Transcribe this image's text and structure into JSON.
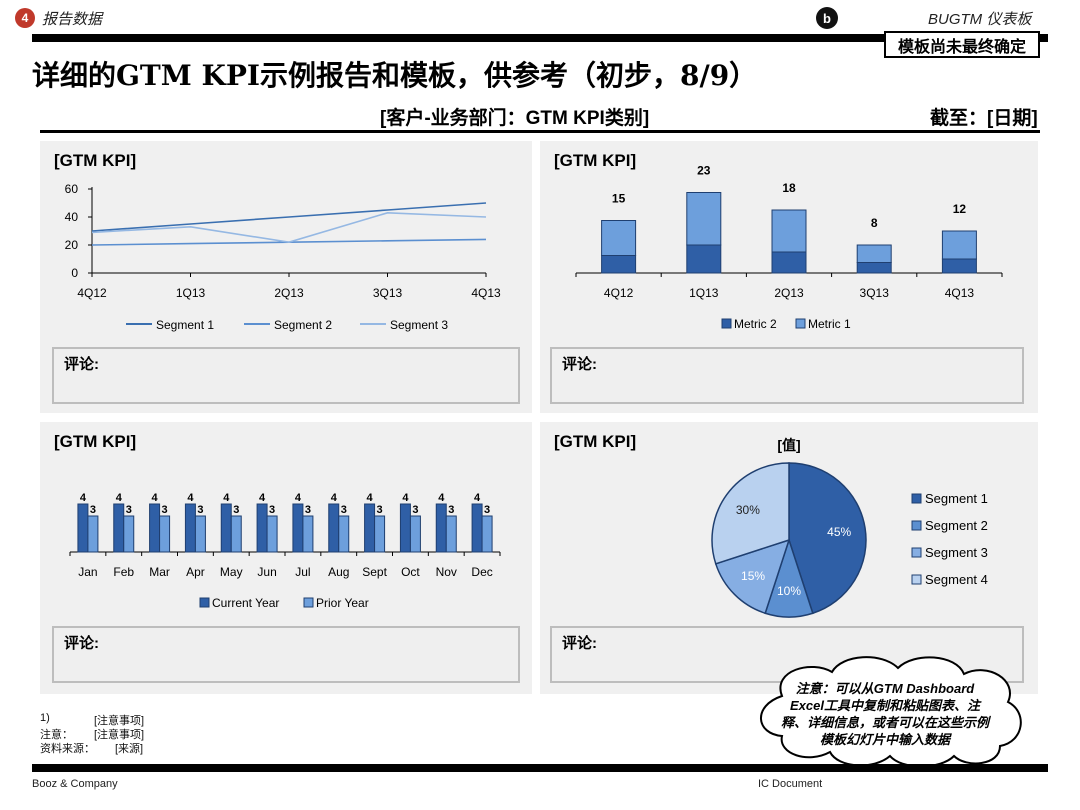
{
  "header": {
    "section_number": "4",
    "section_title": "报告数据",
    "badge": "b",
    "brand": "BUGTM 仪表板",
    "draft_notice": "模板尚未最终确定",
    "title": "详细的GTM KPI示例报告和模板，供参考（初步，8/9）",
    "subtitle": "[客户-业务部门：GTM KPI类别]",
    "as_of": "截至：[日期]"
  },
  "panels": {
    "top_left": {
      "label": "[GTM KPI]",
      "comment": "评论:"
    },
    "top_right": {
      "label": "[GTM KPI]",
      "comment": "评论:"
    },
    "bottom_left": {
      "label": "[GTM KPI]",
      "comment": "评论:"
    },
    "bottom_right": {
      "label": "[GTM KPI]",
      "comment": "评论:"
    }
  },
  "chart_data": [
    {
      "type": "line",
      "categories": [
        "4Q12",
        "1Q13",
        "2Q13",
        "3Q13",
        "4Q13"
      ],
      "ylim": [
        0,
        60
      ],
      "yticks": [
        0,
        20,
        40,
        60
      ],
      "series": [
        {
          "name": "Segment 1",
          "values": [
            30,
            35,
            40,
            45,
            50
          ],
          "color": "#3a6fb0"
        },
        {
          "name": "Segment 2",
          "values": [
            20,
            21,
            22,
            23,
            24
          ],
          "color": "#5b8fd0"
        },
        {
          "name": "Segment 3",
          "values": [
            29,
            33,
            22,
            43,
            40
          ],
          "color": "#95b8e3"
        }
      ],
      "legend_position": "bottom"
    },
    {
      "type": "bar",
      "stacked": true,
      "categories": [
        "4Q12",
        "1Q13",
        "2Q13",
        "3Q13",
        "4Q13"
      ],
      "totals": [
        "15",
        "23",
        "18",
        "8",
        "12"
      ],
      "series": [
        {
          "name": "Metric 2",
          "values": [
            5,
            8,
            6,
            3,
            4
          ],
          "color": "#2f5fa6"
        },
        {
          "name": "Metric 1",
          "values": [
            10,
            15,
            12,
            5,
            8
          ],
          "color": "#6d9fdc"
        }
      ],
      "legend_position": "bottom"
    },
    {
      "type": "bar",
      "categories": [
        "Jan",
        "Feb",
        "Mar",
        "Apr",
        "May",
        "Jun",
        "Jul",
        "Aug",
        "Sept",
        "Oct",
        "Nov",
        "Dec"
      ],
      "series": [
        {
          "name": "Current Year",
          "values": [
            4,
            4,
            4,
            4,
            4,
            4,
            4,
            4,
            4,
            4,
            4,
            4
          ],
          "color": "#2f5fa6"
        },
        {
          "name": "Prior Year",
          "values": [
            3,
            3,
            3,
            3,
            3,
            3,
            3,
            3,
            3,
            3,
            3,
            3
          ],
          "color": "#6d9fdc"
        }
      ],
      "legend_position": "bottom"
    },
    {
      "type": "pie",
      "title": "[值]",
      "slices": [
        {
          "name": "Segment 1",
          "value": 45,
          "label": "45%",
          "color": "#2f5fa6"
        },
        {
          "name": "Segment 2",
          "value": 10,
          "label": "10%",
          "color": "#5b8fd0"
        },
        {
          "name": "Segment 3",
          "value": 15,
          "label": "15%",
          "color": "#86aee3"
        },
        {
          "name": "Segment 4",
          "value": 30,
          "label": "30%",
          "color": "#b9d1ef"
        }
      ],
      "legend_position": "right"
    }
  ],
  "footnotes": {
    "n1_marker": "1)",
    "n1_text": "[注意事项]",
    "note_label": "注意：",
    "note_text": "[注意事项]",
    "source_label": "资料来源：",
    "source_text": "[来源]"
  },
  "footer": {
    "company": "Booz & Company",
    "doc_label": "IC Document"
  },
  "callout": {
    "text": "注意：可以从GTM Dashboard Excel工具中复制和粘贴图表、注释、详细信息，或者可以在这些示例模板幻灯片中输入数据"
  }
}
